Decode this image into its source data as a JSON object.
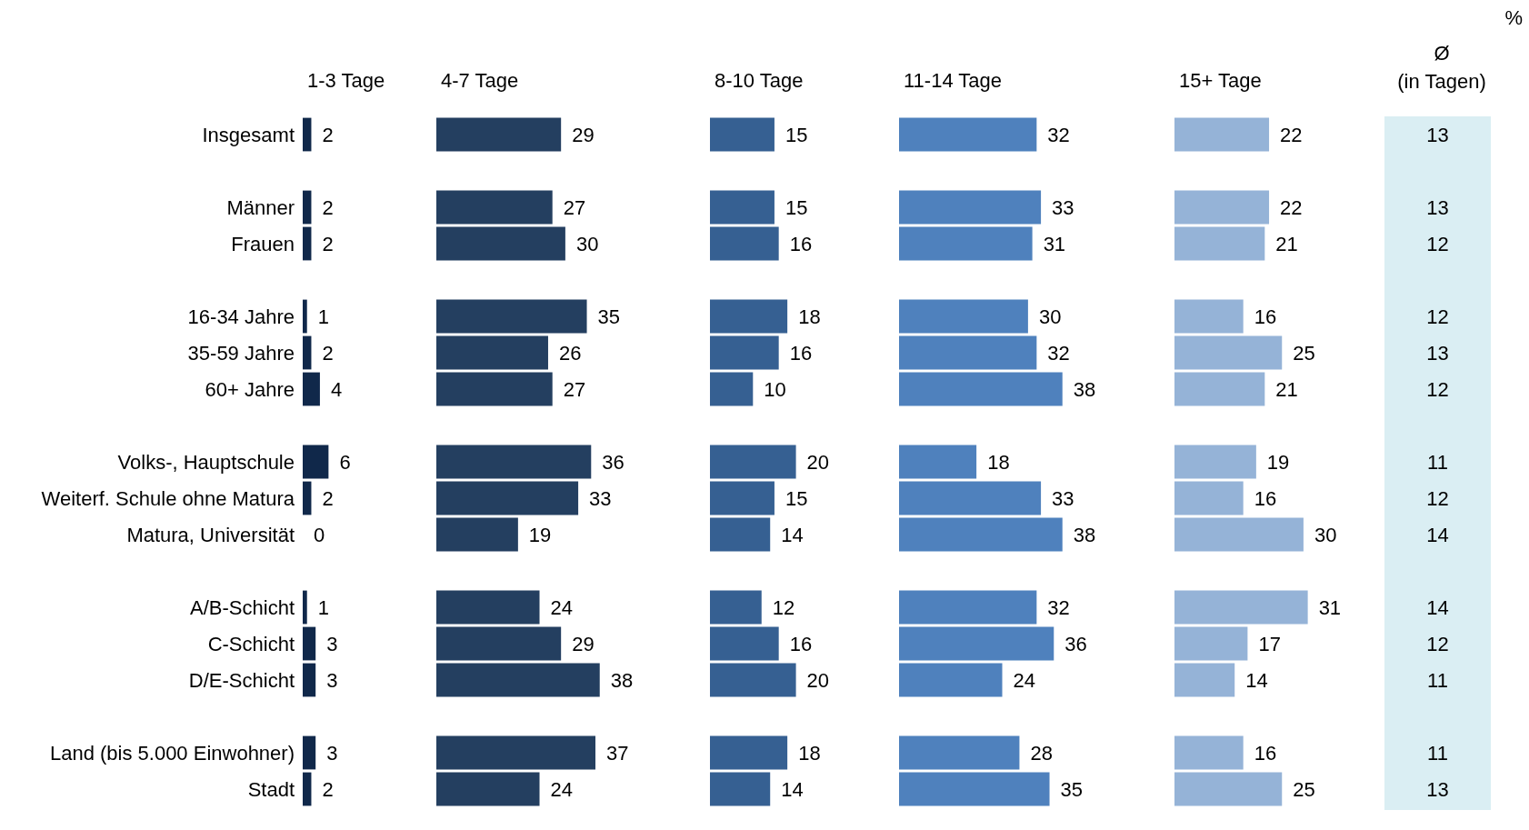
{
  "chart_data": [
    {
      "type": "bar",
      "orientation": "horizontal",
      "title": "1-3 Tage",
      "categories": [
        "Insgesamt",
        null,
        "Männer",
        "Frauen",
        null,
        "16-34 Jahre",
        "35-59 Jahre",
        "60+ Jahre",
        null,
        "Volks-, Hauptschule",
        "Weiterf. Schule ohne Matura",
        "Matura, Universität",
        null,
        "A/B-Schicht",
        "C-Schicht",
        "D/E-Schicht",
        null,
        "Land (bis 5.000 Einwohner)",
        "Stadt"
      ],
      "values": [
        2,
        null,
        2,
        2,
        null,
        1,
        2,
        4,
        null,
        6,
        2,
        0,
        null,
        1,
        3,
        3,
        null,
        3,
        2
      ],
      "color": "#10284a",
      "data_labels": true,
      "tick_labels": "y"
    },
    {
      "type": "bar",
      "orientation": "horizontal",
      "title": "4-7 Tage",
      "values": [
        29,
        null,
        27,
        30,
        null,
        35,
        26,
        27,
        null,
        36,
        33,
        19,
        null,
        24,
        29,
        38,
        null,
        37,
        24
      ],
      "color": "#243f60",
      "data_labels": true,
      "tick_labels": false
    },
    {
      "type": "bar",
      "orientation": "horizontal",
      "title": "8-10 Tage",
      "values": [
        15,
        null,
        15,
        16,
        null,
        18,
        16,
        10,
        null,
        20,
        15,
        14,
        null,
        12,
        16,
        20,
        null,
        18,
        14
      ],
      "color": "#366092",
      "data_labels": true,
      "tick_labels": false
    },
    {
      "type": "bar",
      "orientation": "horizontal",
      "title": "11-14 Tage",
      "values": [
        32,
        null,
        33,
        31,
        null,
        30,
        32,
        38,
        null,
        18,
        33,
        38,
        null,
        32,
        36,
        24,
        null,
        28,
        35
      ],
      "color": "#4f81bd",
      "data_labels": true,
      "tick_labels": false
    },
    {
      "type": "bar",
      "orientation": "horizontal",
      "title": "15+ Tage",
      "values": [
        22,
        null,
        22,
        21,
        null,
        16,
        25,
        21,
        null,
        19,
        16,
        30,
        null,
        31,
        17,
        14,
        null,
        16,
        25
      ],
      "color": "#95b3d7",
      "data_labels": true,
      "tick_labels": false
    },
    {
      "type": "other",
      "title": "Ø\n(in Tagen)",
      "color": "#daeef3",
      "annotations": [
        "%",
        "13",
        "13",
        "12",
        "12",
        "13",
        "12",
        "11",
        "12",
        "14",
        "14",
        "12",
        "11",
        "11",
        "13"
      ]
    }
  ]
}
